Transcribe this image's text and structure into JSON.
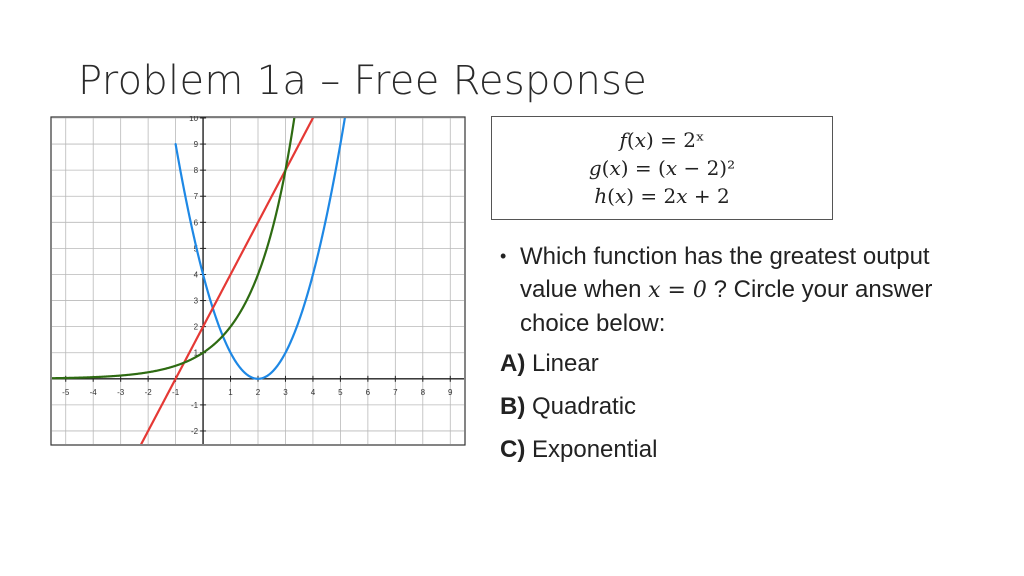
{
  "slide": {
    "title": "Problem 1a – Free Response"
  },
  "formulas": {
    "f": "𝑓(𝑥) = 2ˣ",
    "g": "𝑔(𝑥) = (𝑥 − 2)²",
    "h": "ℎ(𝑥) = 2𝑥 + 2"
  },
  "question": {
    "part1": "Which function has the greatest output value when ",
    "math": "𝑥 = 0",
    "part2": " ?  Circle your answer choice below:"
  },
  "choices": [
    {
      "letter": "A)",
      "text": " Linear"
    },
    {
      "letter": "B)",
      "text": " Quadratic"
    },
    {
      "letter": "C)",
      "text": " Exponential"
    }
  ],
  "chart_data": {
    "type": "line",
    "x_ticks": [
      "-5",
      "-4",
      "-3",
      "-2",
      "-1",
      "1",
      "2",
      "3",
      "4",
      "5",
      "6",
      "7",
      "8",
      "9",
      "1"
    ],
    "y_ticks": [
      "10",
      "9",
      "8",
      "7",
      "6",
      "5",
      "4",
      "3",
      "2",
      "1",
      "-1",
      "-2"
    ],
    "xlim": [
      -5.5,
      9.5
    ],
    "ylim": [
      -2.5,
      10
    ],
    "grid": true,
    "series": [
      {
        "color": "#1e88e5",
        "x": [
          0.2,
          1,
          2,
          3,
          4,
          5.2
        ],
        "y": [
          3.24,
          1,
          0,
          1,
          4,
          10.24
        ]
      },
      {
        "color": "#e53935",
        "x": [
          -2.2,
          -1,
          0,
          2,
          4
        ],
        "y": [
          -2.4,
          0,
          2,
          6,
          10
        ]
      },
      {
        "color": "#2e6b12",
        "x": [
          -5.5,
          -2,
          0,
          1,
          2,
          3,
          3.3
        ],
        "y": [
          0.02,
          0.25,
          1,
          2,
          4,
          8,
          9.85
        ]
      }
    ]
  }
}
